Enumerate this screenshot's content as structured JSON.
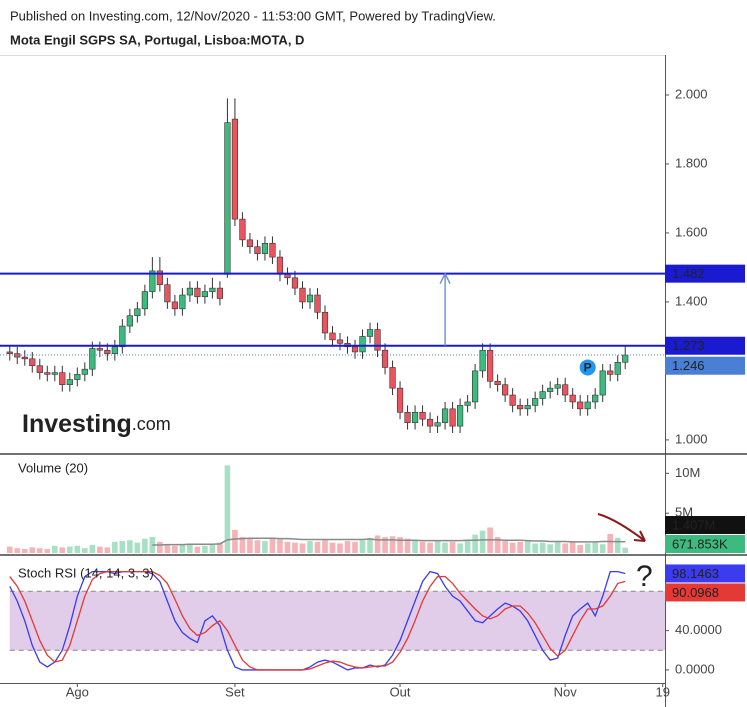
{
  "header": {
    "published": "Published on Investing.com, 12/Nov/2020 - 11:53:00 GMT, Powered by TradingView."
  },
  "watermark": {
    "brand": "Investing",
    "suffix": ".com"
  },
  "chart_data": [
    {
      "type": "candlestick",
      "title": "Mota Engil SGPS SA, Portugal, Lisboa:MOTA, D",
      "up_color": "#3dbb7e",
      "down_color": "#e8555f",
      "open": [
        1.255,
        1.25,
        1.24,
        1.235,
        1.215,
        1.195,
        1.19,
        1.195,
        1.16,
        1.175,
        1.19,
        1.205,
        1.265,
        1.26,
        1.25,
        1.27,
        1.33,
        1.36,
        1.38,
        1.43,
        1.49,
        1.45,
        1.4,
        1.38,
        1.42,
        1.44,
        1.415,
        1.43,
        1.44,
        1.48,
        1.93,
        1.64,
        1.58,
        1.56,
        1.54,
        1.57,
        1.53,
        1.48,
        1.47,
        1.44,
        1.4,
        1.42,
        1.37,
        1.31,
        1.29,
        1.28,
        1.27,
        1.255,
        1.3,
        1.32,
        1.26,
        1.21,
        1.15,
        1.08,
        1.05,
        1.08,
        1.06,
        1.04,
        1.05,
        1.09,
        1.04,
        1.1,
        1.11,
        1.2,
        1.26,
        1.17,
        1.16,
        1.13,
        1.1,
        1.09,
        1.1,
        1.12,
        1.14,
        1.15,
        1.16,
        1.13,
        1.11,
        1.09,
        1.11,
        1.13,
        1.2,
        1.19,
        1.225
      ],
      "high": [
        1.275,
        1.27,
        1.26,
        1.255,
        1.235,
        1.215,
        1.215,
        1.215,
        1.195,
        1.21,
        1.225,
        1.285,
        1.285,
        1.28,
        1.29,
        1.35,
        1.38,
        1.4,
        1.45,
        1.53,
        1.53,
        1.47,
        1.42,
        1.44,
        1.46,
        1.46,
        1.45,
        1.47,
        1.46,
        1.99,
        1.99,
        1.66,
        1.6,
        1.58,
        1.59,
        1.59,
        1.55,
        1.5,
        1.49,
        1.46,
        1.44,
        1.44,
        1.39,
        1.33,
        1.31,
        1.3,
        1.29,
        1.32,
        1.34,
        1.34,
        1.28,
        1.23,
        1.17,
        1.1,
        1.1,
        1.1,
        1.08,
        1.07,
        1.11,
        1.11,
        1.12,
        1.13,
        1.22,
        1.28,
        1.28,
        1.19,
        1.18,
        1.15,
        1.12,
        1.12,
        1.14,
        1.16,
        1.17,
        1.18,
        1.18,
        1.15,
        1.13,
        1.13,
        1.15,
        1.22,
        1.22,
        1.245,
        1.275
      ],
      "low": [
        1.23,
        1.22,
        1.215,
        1.195,
        1.175,
        1.17,
        1.17,
        1.14,
        1.14,
        1.155,
        1.17,
        1.185,
        1.24,
        1.23,
        1.23,
        1.25,
        1.31,
        1.34,
        1.36,
        1.41,
        1.43,
        1.38,
        1.36,
        1.36,
        1.4,
        1.395,
        1.395,
        1.41,
        1.39,
        1.47,
        1.62,
        1.56,
        1.54,
        1.52,
        1.52,
        1.51,
        1.46,
        1.45,
        1.42,
        1.38,
        1.38,
        1.35,
        1.29,
        1.27,
        1.26,
        1.25,
        1.235,
        1.235,
        1.28,
        1.24,
        1.19,
        1.13,
        1.06,
        1.03,
        1.03,
        1.04,
        1.02,
        1.02,
        1.03,
        1.02,
        1.02,
        1.08,
        1.09,
        1.18,
        1.15,
        1.14,
        1.11,
        1.08,
        1.07,
        1.07,
        1.08,
        1.1,
        1.12,
        1.13,
        1.11,
        1.09,
        1.07,
        1.07,
        1.09,
        1.11,
        1.17,
        1.17,
        1.205
      ],
      "close": [
        1.25,
        1.24,
        1.235,
        1.215,
        1.195,
        1.19,
        1.195,
        1.16,
        1.175,
        1.19,
        1.205,
        1.265,
        1.26,
        1.25,
        1.27,
        1.33,
        1.36,
        1.38,
        1.43,
        1.49,
        1.45,
        1.4,
        1.38,
        1.42,
        1.44,
        1.415,
        1.43,
        1.44,
        1.41,
        1.92,
        1.64,
        1.58,
        1.56,
        1.54,
        1.57,
        1.53,
        1.48,
        1.47,
        1.44,
        1.4,
        1.42,
        1.37,
        1.31,
        1.29,
        1.28,
        1.27,
        1.255,
        1.3,
        1.32,
        1.26,
        1.21,
        1.15,
        1.08,
        1.05,
        1.08,
        1.06,
        1.04,
        1.05,
        1.09,
        1.04,
        1.1,
        1.11,
        1.2,
        1.26,
        1.17,
        1.16,
        1.13,
        1.1,
        1.09,
        1.1,
        1.12,
        1.14,
        1.15,
        1.16,
        1.13,
        1.11,
        1.09,
        1.11,
        1.13,
        1.2,
        1.19,
        1.225,
        1.246
      ],
      "ylim": [
        0.962,
        2.113
      ],
      "yticks": [
        {
          "value": 2,
          "label": "2.000"
        },
        {
          "value": 1.8,
          "label": "1.800"
        },
        {
          "value": 1.6,
          "label": "1.600"
        },
        {
          "value": 1.4,
          "label": "1.400"
        },
        {
          "value": 1,
          "label": "1.000"
        }
      ],
      "levels": [
        1.482,
        1.273
      ],
      "level_color": "#1a1ad0",
      "arrow_x": 58,
      "marker": {
        "x": 77,
        "y": 1.21,
        "label": "P"
      }
    },
    {
      "type": "bar",
      "title": "Volume (20)",
      "series": [
        {
          "values": [
            0.8,
            0.6,
            0.5,
            0.7,
            0.6,
            0.5,
            0.9,
            0.7,
            0.8,
            0.9,
            0.6,
            1.0,
            0.8,
            0.7,
            1.4,
            1.5,
            1.6,
            1.3,
            1.8,
            2.0,
            1.4,
            1.0,
            0.9,
            1.1,
            1.2,
            0.8,
            0.9,
            1.0,
            1.3,
            11.0,
            2.9,
            2.0,
            1.9,
            1.6,
            1.5,
            1.8,
            1.7,
            1.4,
            1.3,
            1.2,
            1.5,
            1.4,
            1.6,
            1.3,
            1.2,
            1.5,
            1.4,
            1.6,
            1.9,
            2.2,
            2.0,
            2.1,
            2.0,
            1.8,
            1.6,
            1.4,
            1.3,
            1.5,
            1.3,
            1.4,
            1.2,
            1.6,
            2.3,
            2.8,
            3.2,
            2.0,
            1.5,
            1.3,
            1.4,
            1.6,
            1.2,
            1.3,
            1.1,
            1.4,
            1.2,
            1.5,
            1.0,
            1.2,
            1.3,
            1.1,
            2.4,
            1.9,
            0.671853
          ],
          "last_label": "671.853K",
          "label_color": "#3dbb7e"
        },
        {
          "type": "line",
          "color": "#8a8a8a",
          "values": [
            null,
            null,
            null,
            null,
            null,
            null,
            null,
            null,
            null,
            null,
            null,
            null,
            null,
            null,
            null,
            null,
            null,
            null,
            null,
            1.0,
            1.0,
            1.05,
            1.05,
            1.05,
            1.1,
            1.1,
            1.1,
            1.1,
            1.15,
            1.65,
            1.75,
            1.8,
            1.85,
            1.85,
            1.85,
            1.85,
            1.8,
            1.8,
            1.75,
            1.7,
            1.7,
            1.7,
            1.7,
            1.7,
            1.7,
            1.7,
            1.7,
            1.7,
            1.75,
            1.65,
            1.65,
            1.65,
            1.6,
            1.6,
            1.6,
            1.55,
            1.55,
            1.55,
            1.55,
            1.55,
            1.55,
            1.6,
            1.6,
            1.65,
            1.65,
            1.65,
            1.6,
            1.6,
            1.6,
            1.55,
            1.5,
            1.5,
            1.45,
            1.45,
            1.45,
            1.4,
            1.4,
            1.4,
            1.4,
            1.45,
            1.45,
            1.42,
            1.407
          ],
          "last_label": "1.407M",
          "label_color": "#111"
        }
      ],
      "ylim": [
        0,
        12.3
      ],
      "yticks": [
        {
          "value": 10,
          "label": "10M"
        },
        {
          "value": 5,
          "label": "5M"
        }
      ]
    },
    {
      "type": "line",
      "title": "Stoch RSI (14, 14, 3, 3)",
      "series": [
        {
          "color": "#3b3bf0",
          "values": [
            85,
            70,
            50,
            25,
            8,
            3,
            8,
            20,
            45,
            75,
            95,
            100,
            100,
            100,
            98,
            100,
            100,
            100,
            100,
            98,
            90,
            70,
            50,
            38,
            32,
            28,
            50,
            55,
            45,
            20,
            3,
            0,
            0,
            0,
            0,
            0,
            0,
            0,
            0,
            0,
            3,
            8,
            10,
            8,
            4,
            0,
            2,
            2,
            5,
            3,
            5,
            15,
            30,
            50,
            70,
            90,
            100,
            98,
            85,
            75,
            70,
            60,
            50,
            48,
            55,
            62,
            68,
            65,
            60,
            50,
            35,
            20,
            10,
            12,
            35,
            55,
            62,
            68,
            55,
            75,
            100,
            100,
            98.1463
          ]
        },
        {
          "color": "#e53935",
          "values": [
            95,
            85,
            70,
            50,
            30,
            15,
            8,
            10,
            25,
            50,
            75,
            92,
            98,
            100,
            100,
            100,
            100,
            100,
            100,
            100,
            96,
            88,
            72,
            55,
            42,
            35,
            38,
            45,
            50,
            40,
            25,
            10,
            3,
            0,
            0,
            0,
            0,
            0,
            0,
            0,
            1,
            4,
            7,
            9,
            8,
            5,
            3,
            2,
            3,
            4,
            4,
            8,
            18,
            32,
            50,
            70,
            85,
            95,
            95,
            88,
            78,
            70,
            62,
            55,
            52,
            55,
            62,
            65,
            65,
            58,
            48,
            35,
            22,
            14,
            20,
            35,
            50,
            62,
            62,
            65,
            75,
            88,
            90.0968
          ]
        }
      ],
      "band": [
        20,
        80
      ],
      "band_color": "#c9a3d9",
      "ylim": [
        -13.3,
        115.9
      ],
      "yticks": [
        {
          "value": 40,
          "label": "40.0000"
        },
        {
          "value": 0,
          "label": "0.0000"
        }
      ],
      "xlim": [
        -1.3,
        87.3
      ],
      "xticks": [
        {
          "value": 9,
          "label": "Ago"
        },
        {
          "value": 30,
          "label": "Set"
        },
        {
          "value": 52,
          "label": "Out"
        },
        {
          "value": 74,
          "label": "Nov"
        },
        {
          "value": 87,
          "label": "19"
        }
      ],
      "annotation": "?"
    }
  ]
}
